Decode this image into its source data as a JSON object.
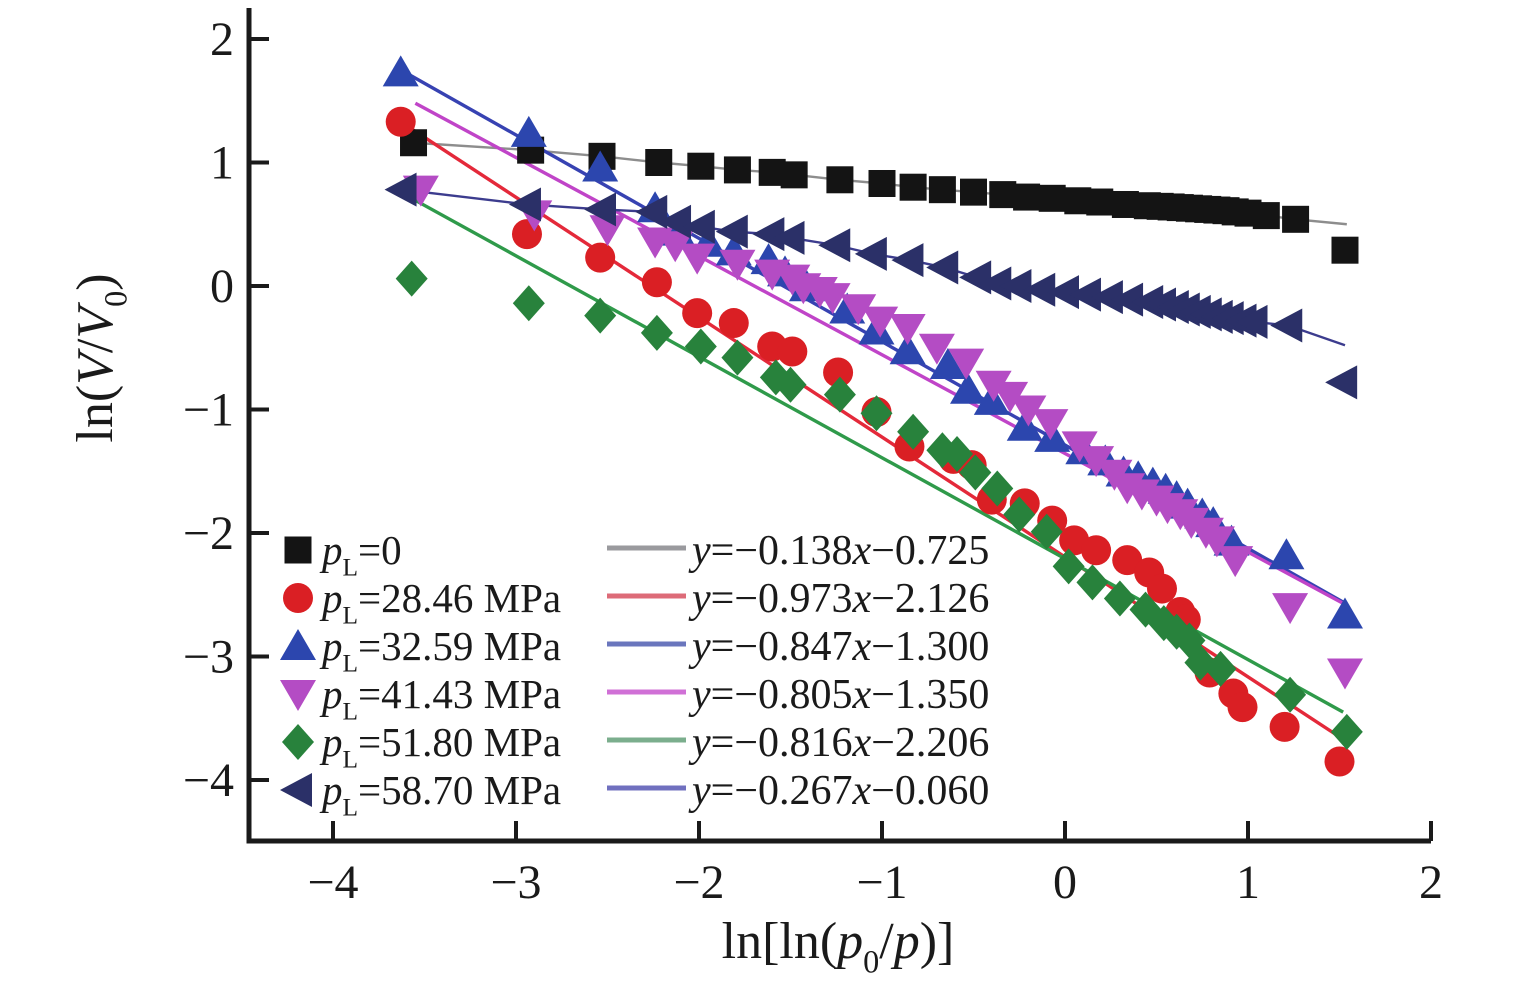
{
  "chart_data": {
    "type": "scatter",
    "title": "",
    "xlabel": "ln[ln(p0/p)]",
    "ylabel": "ln(V/V0)",
    "xlabel_rich": [
      {
        "t": "ln[ln("
      },
      {
        "t": "p",
        "i": 1
      },
      {
        "t": "0",
        "s": 1
      },
      {
        "t": "/"
      },
      {
        "t": "p",
        "i": 1
      },
      {
        "t": ")]"
      }
    ],
    "ylabel_rich": [
      {
        "t": "ln("
      },
      {
        "t": "V",
        "i": 1
      },
      {
        "t": "/"
      },
      {
        "t": "V",
        "i": 1
      },
      {
        "t": "0",
        "s": 1
      },
      {
        "t": ")"
      }
    ],
    "xlim": [
      -4.46,
      2.0
    ],
    "ylim": [
      -4.49,
      2.25
    ],
    "grid": false,
    "background": "#ffffff",
    "axis_color": "#1a1a1a",
    "x_ticks": {
      "values": [
        -4,
        -3,
        -2,
        -1,
        0,
        1,
        2
      ],
      "labels": [
        "−4",
        "−3",
        "−2",
        "−1",
        "0",
        "1",
        "2"
      ]
    },
    "y_ticks": {
      "values": [
        2,
        1,
        0,
        -1,
        -2,
        -3,
        -4
      ],
      "labels": [
        "2",
        "1",
        "0",
        "−1",
        "−2",
        "−3",
        "−4"
      ]
    },
    "legend_position": "inside lower-left, two columns (markers | fit equations)",
    "series": [
      {
        "id": "pl-0",
        "label": "pL=0",
        "label_rich": [
          {
            "t": "p",
            "i": 1
          },
          {
            "t": "L",
            "s": 1
          },
          {
            "t": "=0"
          }
        ],
        "marker": "square",
        "color": "#141414",
        "line_color": "#8d8d8d",
        "legend_line_color": "#9a9a9e",
        "line_mode": "connect",
        "connect_skip_last": 1,
        "line_extend_to": [
          1.54,
          0.5
        ],
        "equation": "y=−0.138x−0.725",
        "equation_rich": [
          {
            "t": "y",
            "i": 1
          },
          {
            "t": "=−0.138"
          },
          {
            "t": "x",
            "i": 1
          },
          {
            "t": "−0.725"
          }
        ],
        "points": [
          [
            -3.56,
            1.16
          ],
          [
            -2.92,
            1.1
          ],
          [
            -2.53,
            1.05
          ],
          [
            -2.22,
            1.0
          ],
          [
            -1.99,
            0.97
          ],
          [
            -1.79,
            0.94
          ],
          [
            -1.6,
            0.92
          ],
          [
            -1.48,
            0.9
          ],
          [
            -1.23,
            0.86
          ],
          [
            -1.0,
            0.83
          ],
          [
            -0.83,
            0.8
          ],
          [
            -0.67,
            0.78
          ],
          [
            -0.5,
            0.76
          ],
          [
            -0.34,
            0.74
          ],
          [
            -0.21,
            0.72
          ],
          [
            -0.07,
            0.71
          ],
          [
            0.07,
            0.69
          ],
          [
            0.19,
            0.68
          ],
          [
            0.33,
            0.66
          ],
          [
            0.45,
            0.65
          ],
          [
            0.52,
            0.645
          ],
          [
            0.58,
            0.64
          ],
          [
            0.63,
            0.635
          ],
          [
            0.68,
            0.63
          ],
          [
            0.73,
            0.625
          ],
          [
            0.78,
            0.62
          ],
          [
            0.83,
            0.615
          ],
          [
            0.88,
            0.61
          ],
          [
            0.93,
            0.6
          ],
          [
            1.0,
            0.59
          ],
          [
            1.1,
            0.57
          ],
          [
            1.26,
            0.54
          ],
          [
            1.53,
            0.29
          ]
        ]
      },
      {
        "id": "pl-28-46",
        "label": "pL=28.46 MPa",
        "label_rich": [
          {
            "t": "p",
            "i": 1
          },
          {
            "t": "L",
            "s": 1
          },
          {
            "t": "=28.46 MPa"
          }
        ],
        "marker": "circle",
        "color": "#da1f24",
        "line_color": "#e4293a",
        "legend_line_color": "#dd6b78",
        "line_mode": "fit",
        "fit_line": [
          [
            -3.63,
            1.33
          ],
          [
            1.52,
            -3.67
          ]
        ],
        "equation": "y=−0.973x−2.126",
        "equation_rich": [
          {
            "t": "y",
            "i": 1
          },
          {
            "t": "=−0.973"
          },
          {
            "t": "x",
            "i": 1
          },
          {
            "t": "−2.126"
          }
        ],
        "points": [
          [
            -3.63,
            1.33
          ],
          [
            -2.94,
            0.42
          ],
          [
            -2.54,
            0.23
          ],
          [
            -2.23,
            0.03
          ],
          [
            -2.01,
            -0.22
          ],
          [
            -1.81,
            -0.3
          ],
          [
            -1.6,
            -0.49
          ],
          [
            -1.49,
            -0.53
          ],
          [
            -1.24,
            -0.7
          ],
          [
            -1.03,
            -1.02
          ],
          [
            -0.85,
            -1.3
          ],
          [
            -0.61,
            -1.4
          ],
          [
            -0.51,
            -1.45
          ],
          [
            -0.4,
            -1.73
          ],
          [
            -0.22,
            -1.76
          ],
          [
            -0.07,
            -1.9
          ],
          [
            0.05,
            -2.06
          ],
          [
            0.17,
            -2.14
          ],
          [
            0.34,
            -2.22
          ],
          [
            0.46,
            -2.32
          ],
          [
            0.53,
            -2.45
          ],
          [
            0.63,
            -2.64
          ],
          [
            0.66,
            -2.7
          ],
          [
            0.79,
            -3.13
          ],
          [
            0.92,
            -3.3
          ],
          [
            0.97,
            -3.41
          ],
          [
            1.2,
            -3.57
          ],
          [
            1.5,
            -3.85
          ]
        ]
      },
      {
        "id": "pl-32-59",
        "label": "pL=32.59 MPa",
        "label_rich": [
          {
            "t": "p",
            "i": 1
          },
          {
            "t": "L",
            "s": 1
          },
          {
            "t": "=32.59 MPa"
          }
        ],
        "marker": "triangle-up",
        "color": "#2c46ae",
        "line_color": "#3742b2",
        "legend_line_color": "#6a76bd",
        "line_mode": "fit",
        "fit_line": [
          [
            -3.63,
            1.75
          ],
          [
            1.52,
            -2.56
          ]
        ],
        "equation": "y=−0.847x−1.300",
        "equation_rich": [
          {
            "t": "y",
            "i": 1
          },
          {
            "t": "=−0.847"
          },
          {
            "t": "x",
            "i": 1
          },
          {
            "t": "−1.300"
          }
        ],
        "points": [
          [
            -3.63,
            1.73
          ],
          [
            -2.93,
            1.24
          ],
          [
            -2.54,
            0.96
          ],
          [
            -2.24,
            0.63
          ],
          [
            -2.12,
            0.44
          ],
          [
            -1.95,
            0.35
          ],
          [
            -1.81,
            0.28
          ],
          [
            -1.62,
            0.21
          ],
          [
            -1.53,
            0.11
          ],
          [
            -1.41,
            -0.01
          ],
          [
            -1.19,
            -0.19
          ],
          [
            -1.03,
            -0.36
          ],
          [
            -0.86,
            -0.52
          ],
          [
            -0.64,
            -0.64
          ],
          [
            -0.53,
            -0.84
          ],
          [
            -0.4,
            -0.93
          ],
          [
            -0.22,
            -1.14
          ],
          [
            -0.07,
            -1.23
          ],
          [
            0.1,
            -1.33
          ],
          [
            0.22,
            -1.42
          ],
          [
            0.32,
            -1.51
          ],
          [
            0.4,
            -1.55
          ],
          [
            0.48,
            -1.6
          ],
          [
            0.55,
            -1.65
          ],
          [
            0.61,
            -1.71
          ],
          [
            0.67,
            -1.77
          ],
          [
            0.75,
            -1.85
          ],
          [
            0.81,
            -1.92
          ],
          [
            0.91,
            -2.07
          ],
          [
            1.21,
            -2.18
          ],
          [
            1.53,
            -2.66
          ]
        ]
      },
      {
        "id": "pl-41-43",
        "label": "pL=41.43 MPa",
        "label_rich": [
          {
            "t": "p",
            "i": 1
          },
          {
            "t": "L",
            "s": 1
          },
          {
            "t": "=41.43 MPa"
          }
        ],
        "marker": "triangle-down",
        "color": "#b44cc4",
        "line_color": "#c044c8",
        "legend_line_color": "#d070d6",
        "line_mode": "fit",
        "fit_line": [
          [
            -3.55,
            1.48
          ],
          [
            1.52,
            -2.57
          ]
        ],
        "equation": "y=−0.805x−1.350",
        "equation_rich": [
          {
            "t": "y",
            "i": 1
          },
          {
            "t": "=−0.805"
          },
          {
            "t": "x",
            "i": 1
          },
          {
            "t": "−1.350"
          }
        ],
        "points": [
          [
            -3.52,
            0.78
          ],
          [
            -2.9,
            0.58
          ],
          [
            -2.5,
            0.46
          ],
          [
            -2.24,
            0.36
          ],
          [
            -2.13,
            0.33
          ],
          [
            -2.01,
            0.23
          ],
          [
            -1.79,
            0.18
          ],
          [
            -1.6,
            0.1
          ],
          [
            -1.49,
            0.06
          ],
          [
            -1.43,
            -0.01
          ],
          [
            -1.34,
            -0.04
          ],
          [
            -1.27,
            -0.09
          ],
          [
            -1.13,
            -0.18
          ],
          [
            -1.01,
            -0.28
          ],
          [
            -0.86,
            -0.34
          ],
          [
            -0.7,
            -0.5
          ],
          [
            -0.54,
            -0.62
          ],
          [
            -0.39,
            -0.8
          ],
          [
            -0.3,
            -0.89
          ],
          [
            -0.2,
            -1.0
          ],
          [
            -0.08,
            -1.11
          ],
          [
            0.08,
            -1.29
          ],
          [
            0.17,
            -1.41
          ],
          [
            0.27,
            -1.52
          ],
          [
            0.34,
            -1.63
          ],
          [
            0.42,
            -1.68
          ],
          [
            0.5,
            -1.73
          ],
          [
            0.56,
            -1.79
          ],
          [
            0.63,
            -1.84
          ],
          [
            0.69,
            -1.91
          ],
          [
            0.77,
            -1.99
          ],
          [
            0.83,
            -2.06
          ],
          [
            0.93,
            -2.22
          ],
          [
            1.23,
            -2.6
          ],
          [
            1.53,
            -3.13
          ]
        ]
      },
      {
        "id": "pl-51-80",
        "label": "pL=51.80 MPa",
        "label_rich": [
          {
            "t": "p",
            "i": 1
          },
          {
            "t": "L",
            "s": 1
          },
          {
            "t": "=51.80 MPa"
          }
        ],
        "marker": "diamond",
        "color": "#28823c",
        "line_color": "#2f9a4a",
        "legend_line_color": "#7bae8d",
        "line_mode": "fit",
        "fit_line": [
          [
            -3.57,
            0.71
          ],
          [
            1.52,
            -3.45
          ]
        ],
        "equation": "y=−0.816x−2.206",
        "equation_rich": [
          {
            "t": "y",
            "i": 1
          },
          {
            "t": "=−0.816"
          },
          {
            "t": "x",
            "i": 1
          },
          {
            "t": "−2.206"
          }
        ],
        "points": [
          [
            -3.57,
            0.06
          ],
          [
            -2.93,
            -0.14
          ],
          [
            -2.54,
            -0.24
          ],
          [
            -2.23,
            -0.38
          ],
          [
            -1.99,
            -0.49
          ],
          [
            -1.79,
            -0.58
          ],
          [
            -1.58,
            -0.74
          ],
          [
            -1.5,
            -0.8
          ],
          [
            -1.23,
            -0.88
          ],
          [
            -1.03,
            -1.03
          ],
          [
            -0.83,
            -1.18
          ],
          [
            -0.67,
            -1.33
          ],
          [
            -0.59,
            -1.36
          ],
          [
            -0.49,
            -1.51
          ],
          [
            -0.37,
            -1.64
          ],
          [
            -0.25,
            -1.85
          ],
          [
            -0.1,
            -1.99
          ],
          [
            0.02,
            -2.27
          ],
          [
            0.15,
            -2.4
          ],
          [
            0.3,
            -2.53
          ],
          [
            0.44,
            -2.62
          ],
          [
            0.54,
            -2.73
          ],
          [
            0.61,
            -2.8
          ],
          [
            0.68,
            -2.87
          ],
          [
            0.74,
            -3.05
          ],
          [
            0.85,
            -3.1
          ],
          [
            1.23,
            -3.31
          ],
          [
            1.54,
            -3.61
          ]
        ]
      },
      {
        "id": "pl-58-70",
        "label": "pL=58.70 MPa",
        "label_rich": [
          {
            "t": "p",
            "i": 1
          },
          {
            "t": "L",
            "s": 1
          },
          {
            "t": "=58.70 MPa"
          }
        ],
        "marker": "triangle-left",
        "color": "#2b3068",
        "line_color": "#3c3c8e",
        "legend_line_color": "#7070bf",
        "line_mode": "connect",
        "connect_skip_last": 1,
        "line_extend_to": [
          1.53,
          -0.48
        ],
        "equation": "y=−0.267x−0.060",
        "equation_rich": [
          {
            "t": "y",
            "i": 1
          },
          {
            "t": "=−0.267"
          },
          {
            "t": "x",
            "i": 1
          },
          {
            "t": "−0.060"
          }
        ],
        "points": [
          [
            -3.62,
            0.78
          ],
          [
            -2.94,
            0.66
          ],
          [
            -2.53,
            0.62
          ],
          [
            -2.25,
            0.6
          ],
          [
            -2.12,
            0.52
          ],
          [
            -1.99,
            0.48
          ],
          [
            -1.81,
            0.44
          ],
          [
            -1.61,
            0.42
          ],
          [
            -1.5,
            0.39
          ],
          [
            -1.25,
            0.33
          ],
          [
            -1.05,
            0.26
          ],
          [
            -0.85,
            0.21
          ],
          [
            -0.66,
            0.15
          ],
          [
            -0.48,
            0.07
          ],
          [
            -0.37,
            0.02
          ],
          [
            -0.26,
            0.0
          ],
          [
            -0.13,
            -0.03
          ],
          [
            0.0,
            -0.05
          ],
          [
            0.12,
            -0.07
          ],
          [
            0.24,
            -0.09
          ],
          [
            0.35,
            -0.11
          ],
          [
            0.46,
            -0.13
          ],
          [
            0.53,
            -0.15
          ],
          [
            0.6,
            -0.17
          ],
          [
            0.66,
            -0.19
          ],
          [
            0.72,
            -0.21
          ],
          [
            0.78,
            -0.23
          ],
          [
            0.84,
            -0.25
          ],
          [
            0.9,
            -0.26
          ],
          [
            0.97,
            -0.28
          ],
          [
            1.03,
            -0.29
          ],
          [
            1.22,
            -0.32
          ],
          [
            1.52,
            -0.78
          ]
        ]
      }
    ]
  }
}
